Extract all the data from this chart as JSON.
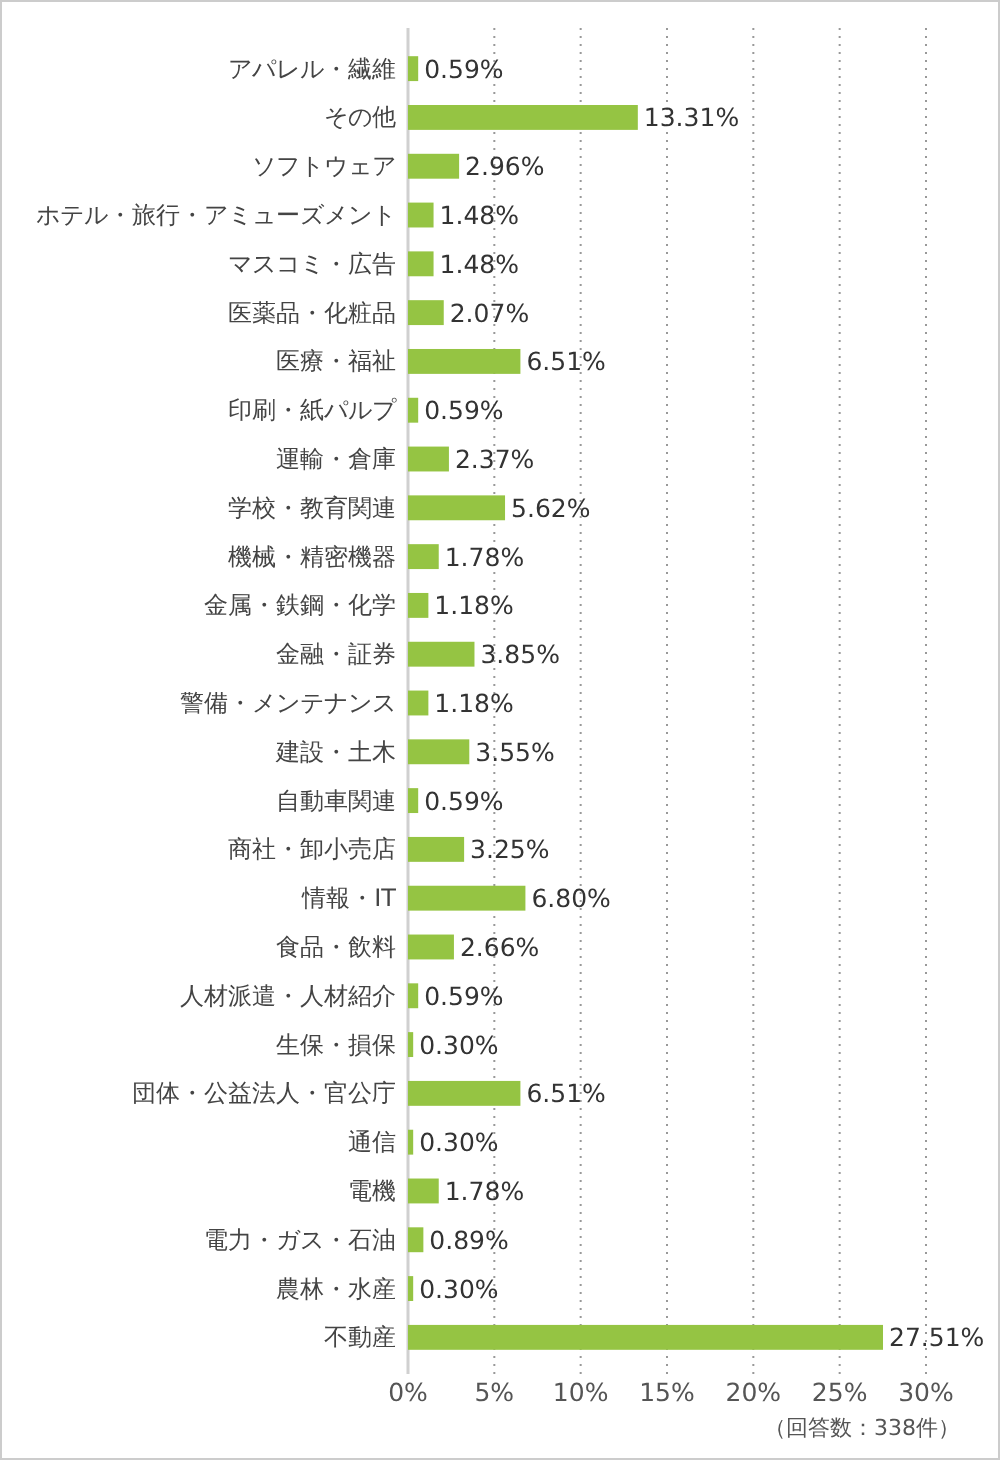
{
  "chart_data": {
    "type": "bar",
    "orientation": "horizontal",
    "categories": [
      "アパレル・繊維",
      "その他",
      "ソフトウェア",
      "ホテル・旅行・アミューズメント",
      "マスコミ・広告",
      "医薬品・化粧品",
      "医療・福祉",
      "印刷・紙パルプ",
      "運輸・倉庫",
      "学校・教育関連",
      "機械・精密機器",
      "金属・鉄鋼・化学",
      "金融・証券",
      "警備・メンテナンス",
      "建設・土木",
      "自動車関連",
      "商社・卸小売店",
      "情報・IT",
      "食品・飲料",
      "人材派遣・人材紹介",
      "生保・損保",
      "団体・公益法人・官公庁",
      "通信",
      "電機",
      "電力・ガス・石油",
      "農林・水産",
      "不動産"
    ],
    "values": [
      0.59,
      13.31,
      2.96,
      1.48,
      1.48,
      2.07,
      6.51,
      0.59,
      2.37,
      5.62,
      1.78,
      1.18,
      3.85,
      1.18,
      3.55,
      0.59,
      3.25,
      6.8,
      2.66,
      0.59,
      0.3,
      6.51,
      0.3,
      1.78,
      0.89,
      0.3,
      27.51
    ],
    "value_labels": [
      "0.59%",
      "13.31%",
      "2.96%",
      "1.48%",
      "1.48%",
      "2.07%",
      "6.51%",
      "0.59%",
      "2.37%",
      "5.62%",
      "1.78%",
      "1.18%",
      "3.85%",
      "1.18%",
      "3.55%",
      "0.59%",
      "3.25%",
      "6.80%",
      "2.66%",
      "0.59%",
      "0.30%",
      "6.51%",
      "0.30%",
      "1.78%",
      "0.89%",
      "0.30%",
      "27.51%"
    ],
    "color": "#95c443",
    "xlim": [
      0,
      30
    ],
    "xticks": [
      {
        "value": 0,
        "label": "0%"
      },
      {
        "value": 5,
        "label": "5%"
      },
      {
        "value": 10,
        "label": "10%"
      },
      {
        "value": 15,
        "label": "15%"
      },
      {
        "value": 20,
        "label": "20%"
      },
      {
        "value": 25,
        "label": "25%"
      },
      {
        "value": 30,
        "label": "30%"
      }
    ],
    "grid": "x",
    "annotations": [
      "（回答数：338件）"
    ]
  }
}
